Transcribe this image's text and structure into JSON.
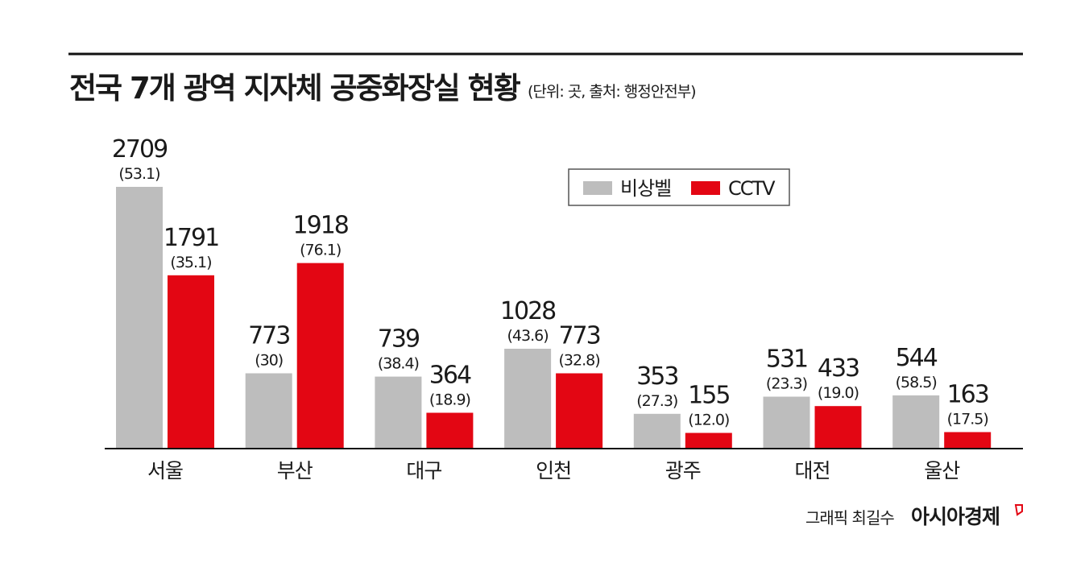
{
  "title": "전국 7개 광역 지자체 공중화장실 현황",
  "subtitle": "(단위: 곳, 출처: 행정안전부)",
  "credit": {
    "author": "그래픽 최길수",
    "brand": "아시아경제"
  },
  "colors": {
    "series_bell": "#bdbdbd",
    "series_cctv": "#e30613",
    "text": "#1a1a1a",
    "rule": "#111111"
  },
  "chart_data": {
    "type": "bar",
    "title": "전국 7개 광역 지자체 공중화장실 현황",
    "subtitle": "(단위: 곳, 출처: 행정안전부)",
    "categories": [
      "서울",
      "부산",
      "대구",
      "인천",
      "광주",
      "대전",
      "울산"
    ],
    "series": [
      {
        "name": "비상벨",
        "values": [
          2709,
          773,
          739,
          1028,
          353,
          531,
          544
        ],
        "percents": [
          "(53.1)",
          "(30)",
          "(38.4)",
          "(43.6)",
          "(27.3)",
          "(23.3)",
          "(58.5)"
        ]
      },
      {
        "name": "CCTV",
        "values": [
          1791,
          1918,
          364,
          773,
          155,
          433,
          163
        ],
        "percents": [
          "(35.1)",
          "(76.1)",
          "(18.9)",
          "(32.8)",
          "(12.0)",
          "(19.0)",
          "(17.5)"
        ]
      }
    ],
    "xlabel": "",
    "ylabel": "",
    "ylim": [
      0,
      2709
    ],
    "grid": false,
    "legend": "top-right"
  }
}
